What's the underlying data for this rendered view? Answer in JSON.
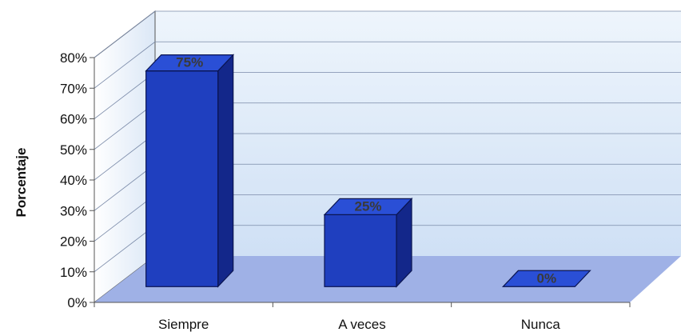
{
  "chart_data": {
    "type": "bar",
    "categories": [
      "Siempre",
      "A veces",
      "Nunca"
    ],
    "values": [
      75,
      25,
      0
    ],
    "data_labels": [
      "75%",
      "25%",
      "0%"
    ],
    "ylabel": "Porcentaje",
    "y_ticks": [
      "0%",
      "10%",
      "20%",
      "30%",
      "40%",
      "50%",
      "60%",
      "70%",
      "80%"
    ],
    "ylim": [
      0,
      80
    ],
    "grid": true,
    "three_d": true,
    "colors": {
      "bar_front": "#1f3fbf",
      "bar_top": "#2a4fd6",
      "bar_side": "#13278a",
      "bar_outline": "#0a1450",
      "back_wall": "#e9f2fb",
      "floor": "#9fb1e6",
      "gridline": "#7a8aa8",
      "axis": "#555555"
    }
  }
}
